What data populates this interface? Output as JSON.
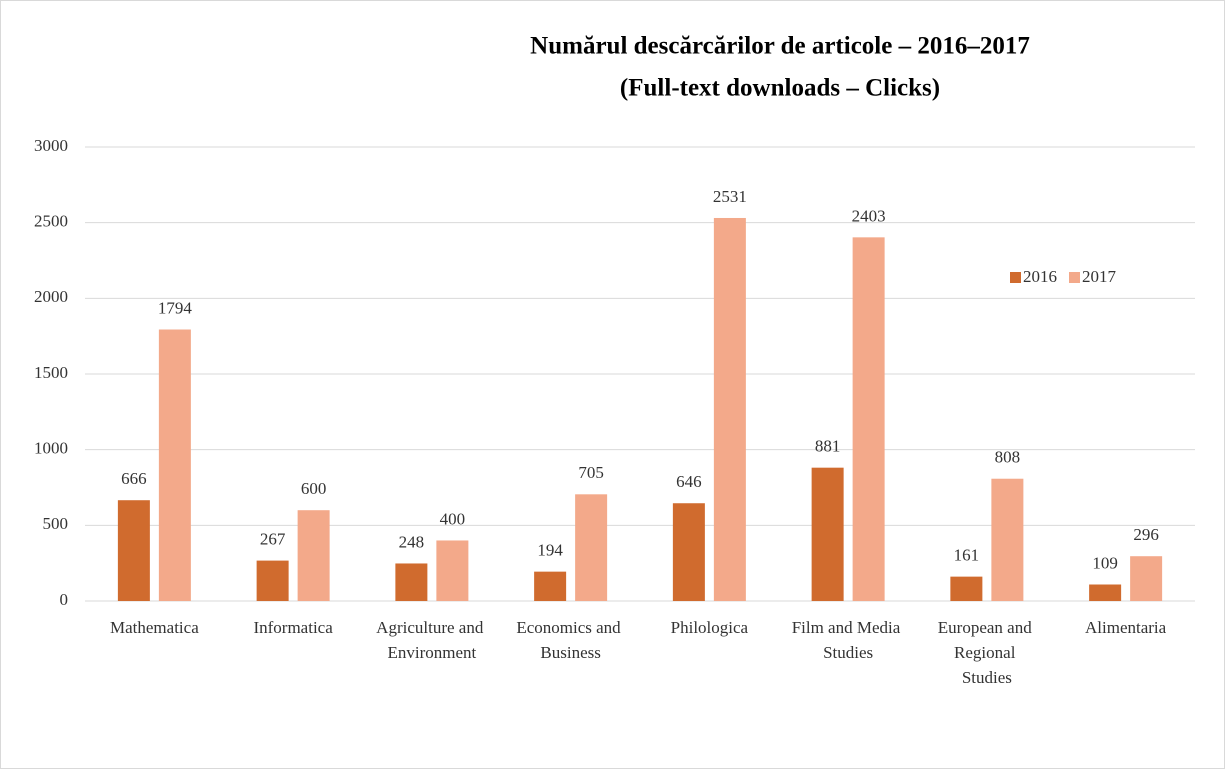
{
  "chart_data": {
    "type": "bar",
    "title": "Numărul descărcărilor de articole –  2016–2017",
    "subtitle": "(Full-text downloads – Clicks)",
    "categories": [
      "Mathematica",
      "Informatica",
      "Agriculture and Environment",
      "Economics and Business",
      "Philologica",
      "Film and Media Studies",
      "European and Regional Studies",
      "Alimentaria"
    ],
    "series": [
      {
        "name": "2016",
        "color": "#d06b2e",
        "values": [
          666,
          267,
          248,
          194,
          646,
          881,
          161,
          109
        ]
      },
      {
        "name": "2017",
        "color": "#f3a98a",
        "values": [
          1794,
          600,
          400,
          705,
          2531,
          2403,
          808,
          296
        ]
      }
    ],
    "ylim": [
      0,
      3000
    ],
    "yticks": [
      0,
      500,
      1000,
      1500,
      2000,
      2500,
      3000
    ],
    "grid": true,
    "legend": "right"
  }
}
